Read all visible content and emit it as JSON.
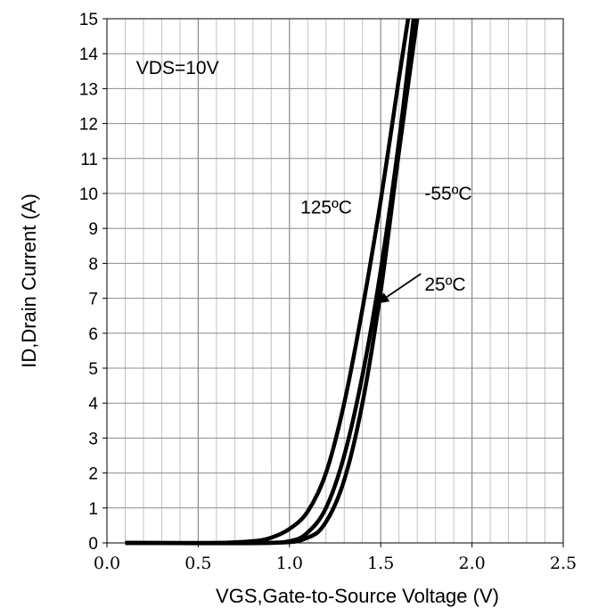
{
  "chart_data": {
    "type": "line",
    "xlabel": "VGS,Gate-to-Source Voltage (V)",
    "ylabel": "ID,Drain Current (A)",
    "xlim": [
      0.0,
      2.5
    ],
    "ylim": [
      0,
      15
    ],
    "x_ticks": [
      "0.0",
      "0.5",
      "1.0",
      "1.5",
      "2.0",
      "2.5"
    ],
    "y_ticks": [
      "0",
      "1",
      "2",
      "3",
      "4",
      "5",
      "6",
      "7",
      "8",
      "9",
      "10",
      "11",
      "12",
      "13",
      "14",
      "15"
    ],
    "x_minor_step": 0.1,
    "grid": true,
    "series": [
      {
        "name": "125ºC",
        "x": [
          0.1,
          0.6,
          0.8,
          0.9,
          1.0,
          1.1,
          1.2,
          1.3,
          1.4,
          1.5,
          1.6,
          1.65
        ],
        "y": [
          0,
          0,
          0.05,
          0.15,
          0.4,
          0.9,
          2.0,
          4.0,
          6.7,
          9.8,
          13.3,
          15.0
        ]
      },
      {
        "name": "25ºC",
        "x": [
          0.1,
          0.8,
          1.0,
          1.1,
          1.2,
          1.3,
          1.4,
          1.5,
          1.6,
          1.68
        ],
        "y": [
          0,
          0,
          0.05,
          0.3,
          1.0,
          2.5,
          4.8,
          7.8,
          11.5,
          15.0
        ]
      },
      {
        "name": "-55ºC",
        "x": [
          0.1,
          0.9,
          1.1,
          1.2,
          1.3,
          1.4,
          1.5,
          1.6,
          1.7
        ],
        "y": [
          0,
          0,
          0.15,
          0.6,
          1.8,
          4.0,
          7.2,
          11.2,
          15.0
        ]
      }
    ],
    "annotations": [
      {
        "text": "VDS=10V",
        "x": 0.16,
        "y": 13.6
      },
      {
        "text": "125ºC",
        "x": 1.06,
        "y": 9.6
      },
      {
        "text": "-55ºC",
        "x": 1.74,
        "y": 10.0
      },
      {
        "text": "25ºC",
        "x": 1.74,
        "y": 7.4
      }
    ],
    "arrow": {
      "from_x": 1.72,
      "from_y": 7.7,
      "to_x": 1.48,
      "to_y": 6.85
    }
  }
}
